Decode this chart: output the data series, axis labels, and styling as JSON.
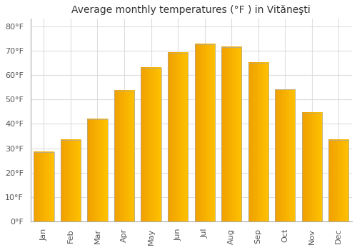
{
  "title": "Average monthly temperatures (°F ) in Vităneşti",
  "months": [
    "Jan",
    "Feb",
    "Mar",
    "Apr",
    "May",
    "Jun",
    "Jul",
    "Aug",
    "Sep",
    "Oct",
    "Nov",
    "Dec"
  ],
  "values": [
    28.5,
    33.5,
    42.0,
    53.5,
    63.0,
    69.0,
    72.5,
    71.5,
    65.0,
    54.0,
    44.5,
    33.5
  ],
  "bar_color_top": "#FFC200",
  "bar_color_bottom": "#F0A000",
  "bar_edge_color": "#AAAAAA",
  "background_color": "#FFFFFF",
  "grid_color": "#DDDDDD",
  "ylim": [
    0,
    83
  ],
  "yticks": [
    0,
    10,
    20,
    30,
    40,
    50,
    60,
    70,
    80
  ],
  "title_fontsize": 10,
  "tick_fontsize": 8,
  "figsize": [
    5.0,
    3.5
  ],
  "dpi": 100
}
